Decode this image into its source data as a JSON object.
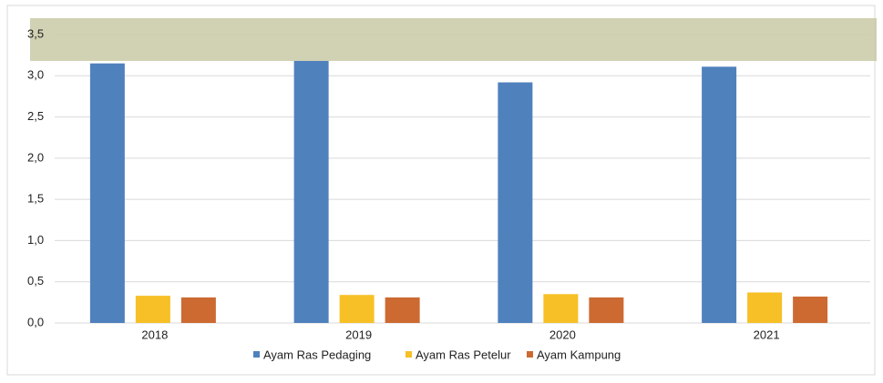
{
  "chart_data": {
    "type": "bar",
    "categories": [
      "2018",
      "2019",
      "2020",
      "2021"
    ],
    "series": [
      {
        "name": "Ayam Ras Pedaging",
        "color": "#4f81bd",
        "values": [
          3.15,
          3.18,
          2.92,
          3.11
        ]
      },
      {
        "name": "Ayam Ras Petelur",
        "color": "#f6c026",
        "values": [
          0.33,
          0.34,
          0.35,
          0.37
        ]
      },
      {
        "name": "Ayam Kampung",
        "color": "#cc6a32",
        "values": [
          0.31,
          0.31,
          0.31,
          0.32
        ]
      }
    ],
    "ylim": [
      0,
      3.5
    ],
    "yticks": [
      {
        "value": 0,
        "label": "0,0"
      },
      {
        "value": 0.5,
        "label": "0,5"
      },
      {
        "value": 1,
        "label": "1,0"
      },
      {
        "value": 1.5,
        "label": "1,5"
      },
      {
        "value": 2,
        "label": "2,0"
      },
      {
        "value": 2.5,
        "label": "2,5"
      },
      {
        "value": 3,
        "label": "3,0"
      },
      {
        "value": 3.5,
        "label": "3,5"
      }
    ],
    "grid": true
  }
}
